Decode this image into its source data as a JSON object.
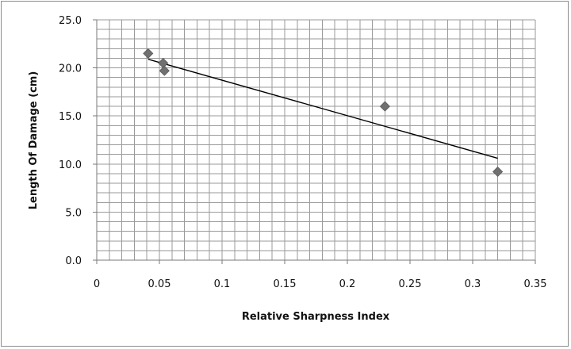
{
  "chart_data": {
    "type": "scatter",
    "title": "",
    "xlabel": "Relative Sharpness Index",
    "ylabel": "Length Of Damage (cm)",
    "xlim": [
      0,
      0.35
    ],
    "ylim": [
      0,
      25
    ],
    "x_ticks": [
      "0",
      "0.05",
      "0.1",
      "0.15",
      "0.2",
      "0.25",
      "0.3",
      "0.35"
    ],
    "y_ticks": [
      "0.0",
      "5.0",
      "10.0",
      "15.0",
      "20.0",
      "25.0"
    ],
    "grid": true,
    "legend": "none",
    "series": [
      {
        "marker": "diamond",
        "color": "#707070",
        "points": [
          {
            "x": 0.041,
            "y": 21.5
          },
          {
            "x": 0.053,
            "y": 20.5
          },
          {
            "x": 0.054,
            "y": 19.7
          },
          {
            "x": 0.23,
            "y": 16.0
          },
          {
            "x": 0.32,
            "y": 9.2
          }
        ]
      }
    ],
    "trendline": {
      "type": "linear",
      "color": "#000000",
      "from": {
        "x": 0.041,
        "y": 20.9
      },
      "to": {
        "x": 0.32,
        "y": 10.6
      }
    }
  }
}
